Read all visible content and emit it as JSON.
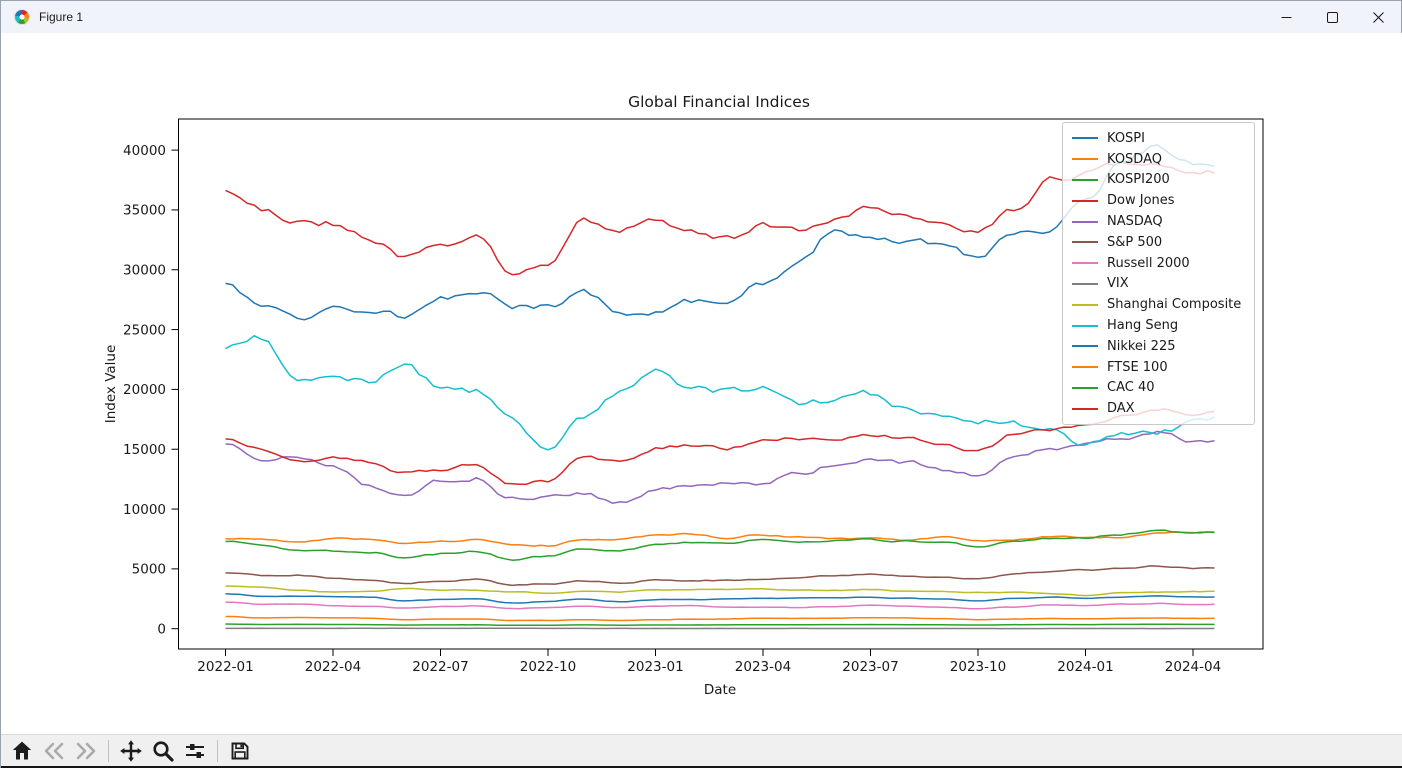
{
  "window": {
    "title": "Figure 1",
    "controls": [
      {
        "name": "minimize"
      },
      {
        "name": "maximize"
      },
      {
        "name": "close"
      }
    ]
  },
  "chart_data": {
    "type": "line",
    "title": "Global Financial Indices",
    "xlabel": "Date",
    "ylabel": "Index Value",
    "x_tick_labels": [
      "2022-01",
      "2022-04",
      "2022-07",
      "2022-10",
      "2023-01",
      "2023-04",
      "2023-07",
      "2023-10",
      "2024-01",
      "2024-04"
    ],
    "y_ticks": [
      0,
      5000,
      10000,
      15000,
      20000,
      25000,
      30000,
      35000,
      40000
    ],
    "ylim": [
      -1700,
      42600
    ],
    "x_range": [
      "2022-01",
      "2024-04"
    ],
    "grid": false,
    "legend_position": "upper right",
    "anchor_months": [
      "2022-01",
      "2022-02",
      "2022-03",
      "2022-04",
      "2022-05",
      "2022-06",
      "2022-07",
      "2022-08",
      "2022-09",
      "2022-10",
      "2022-11",
      "2022-12",
      "2023-01",
      "2023-02",
      "2023-03",
      "2023-04",
      "2023-05",
      "2023-06",
      "2023-07",
      "2023-08",
      "2023-09",
      "2023-10",
      "2023-11",
      "2023-12",
      "2024-01",
      "2024-02",
      "2024-03",
      "2024-04",
      "2024-05"
    ],
    "series": [
      {
        "name": "KOSPI",
        "color": "#1f77b4",
        "jitter": 30,
        "values": [
          2950,
          2700,
          2720,
          2700,
          2640,
          2350,
          2440,
          2470,
          2170,
          2280,
          2470,
          2260,
          2430,
          2420,
          2460,
          2510,
          2570,
          2560,
          2630,
          2550,
          2470,
          2300,
          2520,
          2640,
          2510,
          2630,
          2740,
          2670,
          2690
        ]
      },
      {
        "name": "KOSDAQ",
        "color": "#ff7f0e",
        "jitter": 14,
        "values": [
          1030,
          900,
          930,
          900,
          880,
          750,
          800,
          810,
          680,
          690,
          740,
          680,
          740,
          790,
          810,
          870,
          850,
          880,
          930,
          900,
          840,
          750,
          810,
          860,
          830,
          860,
          900,
          860,
          865
        ]
      },
      {
        "name": "KOSPI200",
        "color": "#2ca02c",
        "jitter": 5,
        "values": [
          390,
          356,
          362,
          352,
          344,
          306,
          320,
          324,
          280,
          294,
          320,
          292,
          314,
          310,
          324,
          332,
          340,
          338,
          348,
          336,
          324,
          302,
          334,
          354,
          342,
          360,
          376,
          362,
          364
        ]
      },
      {
        "name": "Dow Jones",
        "color": "#d62728",
        "jitter": 350,
        "values": [
          36500,
          35000,
          34000,
          33900,
          32600,
          31200,
          32200,
          32600,
          29800,
          30600,
          34000,
          33200,
          33900,
          33200,
          32500,
          33900,
          33200,
          34300,
          35400,
          34800,
          33600,
          33000,
          34900,
          37500,
          38000,
          38700,
          39100,
          38200,
          38400
        ]
      },
      {
        "name": "NASDAQ",
        "color": "#9467bd",
        "jitter": 220,
        "values": [
          15500,
          14200,
          14300,
          13500,
          12000,
          11100,
          12300,
          12600,
          10900,
          10900,
          11200,
          10500,
          11600,
          11900,
          12100,
          12100,
          13000,
          13700,
          14300,
          13900,
          13200,
          12800,
          14200,
          15000,
          15500,
          16000,
          16350,
          15650,
          15500
        ]
      },
      {
        "name": "S&P 500",
        "color": "#8c564b",
        "jitter": 55,
        "values": [
          4700,
          4450,
          4480,
          4230,
          4050,
          3800,
          4000,
          4150,
          3650,
          3750,
          3990,
          3850,
          4050,
          4000,
          4050,
          4150,
          4200,
          4420,
          4560,
          4450,
          4300,
          4180,
          4550,
          4770,
          4900,
          5080,
          5230,
          5050,
          5120
        ]
      },
      {
        "name": "Russell 2000",
        "color": "#e377c2",
        "jitter": 28,
        "values": [
          2230,
          2050,
          2070,
          1920,
          1840,
          1730,
          1850,
          1920,
          1680,
          1760,
          1860,
          1770,
          1910,
          1920,
          1790,
          1780,
          1760,
          1870,
          1970,
          1900,
          1800,
          1690,
          1810,
          2010,
          1960,
          2050,
          2110,
          2000,
          2030
        ]
      },
      {
        "name": "VIX",
        "color": "#7f7f7f",
        "jitter": 4,
        "values": [
          25,
          30,
          23,
          29,
          28,
          29,
          23,
          26,
          31,
          30,
          24,
          22,
          19,
          21,
          21,
          17,
          18,
          14,
          14,
          16,
          17,
          19,
          14,
          13,
          14,
          14,
          13,
          16,
          15
        ]
      },
      {
        "name": "Shanghai Composite",
        "color": "#bcbd22",
        "jitter": 35,
        "values": [
          3560,
          3460,
          3250,
          3050,
          3130,
          3350,
          3250,
          3200,
          3100,
          2950,
          3100,
          3080,
          3250,
          3280,
          3270,
          3320,
          3220,
          3200,
          3270,
          3120,
          3110,
          3020,
          3030,
          2950,
          2790,
          3010,
          3050,
          3090,
          3110
        ]
      },
      {
        "name": "Hang Seng",
        "color": "#17becf",
        "jitter": 350,
        "values": [
          23400,
          24300,
          20600,
          21100,
          20600,
          21800,
          20300,
          19900,
          17600,
          15000,
          17600,
          19800,
          21900,
          20200,
          19900,
          20100,
          18800,
          19000,
          19600,
          18300,
          17800,
          17200,
          17100,
          16800,
          15400,
          16200,
          16600,
          17200,
          17500
        ]
      },
      {
        "name": "Nikkei 225",
        "color": "#1f77b4",
        "jitter": 350,
        "values": [
          29000,
          27300,
          25800,
          26900,
          26600,
          26200,
          27500,
          28400,
          26700,
          27000,
          28000,
          26500,
          26500,
          27400,
          27500,
          28800,
          30800,
          33200,
          32800,
          32300,
          32100,
          31000,
          33200,
          33200,
          35500,
          39000,
          40200,
          38800,
          38300
        ]
      },
      {
        "name": "FTSE 100",
        "color": "#ff7f0e",
        "jitter": 75,
        "values": [
          7450,
          7500,
          7250,
          7550,
          7500,
          7150,
          7300,
          7450,
          7000,
          6950,
          7450,
          7480,
          7750,
          7900,
          7550,
          7850,
          7650,
          7500,
          7550,
          7450,
          7650,
          7350,
          7450,
          7700,
          7650,
          7650,
          7950,
          8050,
          8130
        ]
      },
      {
        "name": "CAC 40",
        "color": "#2ca02c",
        "jitter": 85,
        "values": [
          7350,
          6950,
          6550,
          6500,
          6400,
          5950,
          6250,
          6500,
          5750,
          6050,
          6700,
          6500,
          7050,
          7250,
          7150,
          7500,
          7300,
          7350,
          7450,
          7300,
          7150,
          6850,
          7250,
          7550,
          7600,
          7900,
          8150,
          8050,
          8060
        ]
      },
      {
        "name": "DAX",
        "color": "#d62728",
        "jitter": 180,
        "values": [
          16000,
          15100,
          13900,
          14200,
          14000,
          13000,
          13250,
          13700,
          12150,
          12300,
          14400,
          14000,
          15100,
          15400,
          15100,
          15800,
          15900,
          16000,
          16200,
          15900,
          15400,
          14800,
          16200,
          16700,
          16900,
          17700,
          18400,
          18000,
          18100
        ]
      }
    ]
  },
  "toolbar": {
    "icons": [
      {
        "name": "home",
        "enabled": true
      },
      {
        "name": "back",
        "enabled": false
      },
      {
        "name": "forward",
        "enabled": false
      },
      {
        "name": "pan",
        "enabled": true
      },
      {
        "name": "zoom",
        "enabled": true
      },
      {
        "name": "configure-subplots",
        "enabled": true
      },
      {
        "name": "save",
        "enabled": true
      }
    ]
  }
}
